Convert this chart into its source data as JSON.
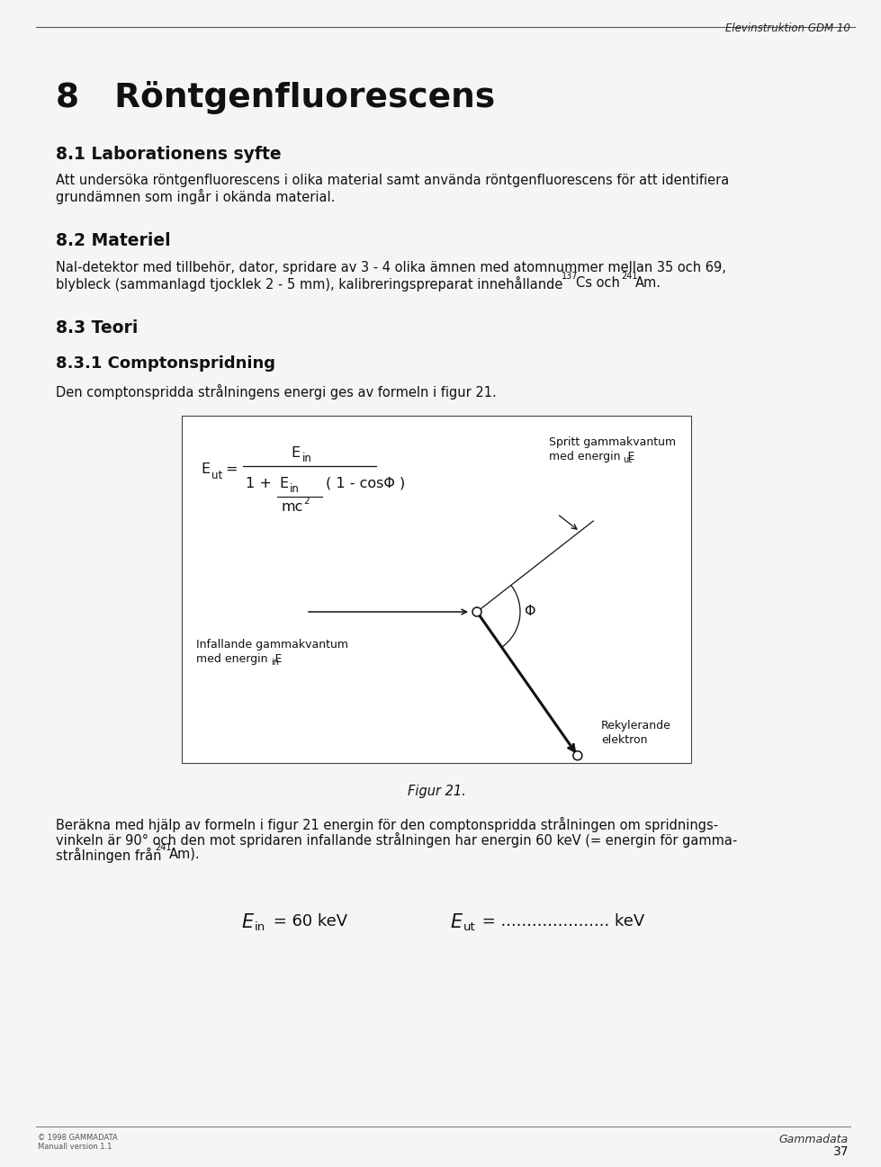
{
  "page_bg": "#f5f5f5",
  "header_text": "Elevinstruktion GDM 10",
  "title_main": "8   Röntgenfluorescens",
  "section_81": "8.1 Laborationens syfte",
  "body_81_line1": "Att undersöka röntgenfluorescens i olika material samt använda röntgenfluorescens för att identifiera",
  "body_81_line2": "grundämnen som ingår i okända material.",
  "section_82": "8.2 Materiel",
  "body_82_line1": "NaI-detektor med tillbehör, dator, spridare av 3 - 4 olika ämnen med atomnummer mellan 35 och 69,",
  "body_82_line2a": "blybleck (sammanlagd tjocklek 2 - 5 mm), kalibreringspreparat innehållande ",
  "body_82_sup1": "137",
  "body_82_line2b": "Cs och ",
  "body_82_sup2": "241",
  "body_82_line2c": "Am.",
  "section_83": "8.3 Teori",
  "section_831": "8.3.1 Comptonspridning",
  "body_831": "Den comptonspridda strålningens energi ges av formeln i figur 21.",
  "figur_caption": "Figur 21.",
  "body_berakna_line1": "Beräkna med hjälp av formeln i figur 21 energin för den comptonspridda strålningen om spridnings-",
  "body_berakna_line2": "vinkeln är 90° och den mot spridaren infallande strålningen har energin 60 keV (= energin för gamma-",
  "body_berakna_line3a": "strålningen från ",
  "body_berakna_sup": "241",
  "body_berakna_line3b": "Am).",
  "footer_left_line1": "© 1998 GAMMADATA",
  "footer_left_line2": "Manuall version 1.1",
  "footer_right": "Gammadata",
  "footer_page": "37"
}
